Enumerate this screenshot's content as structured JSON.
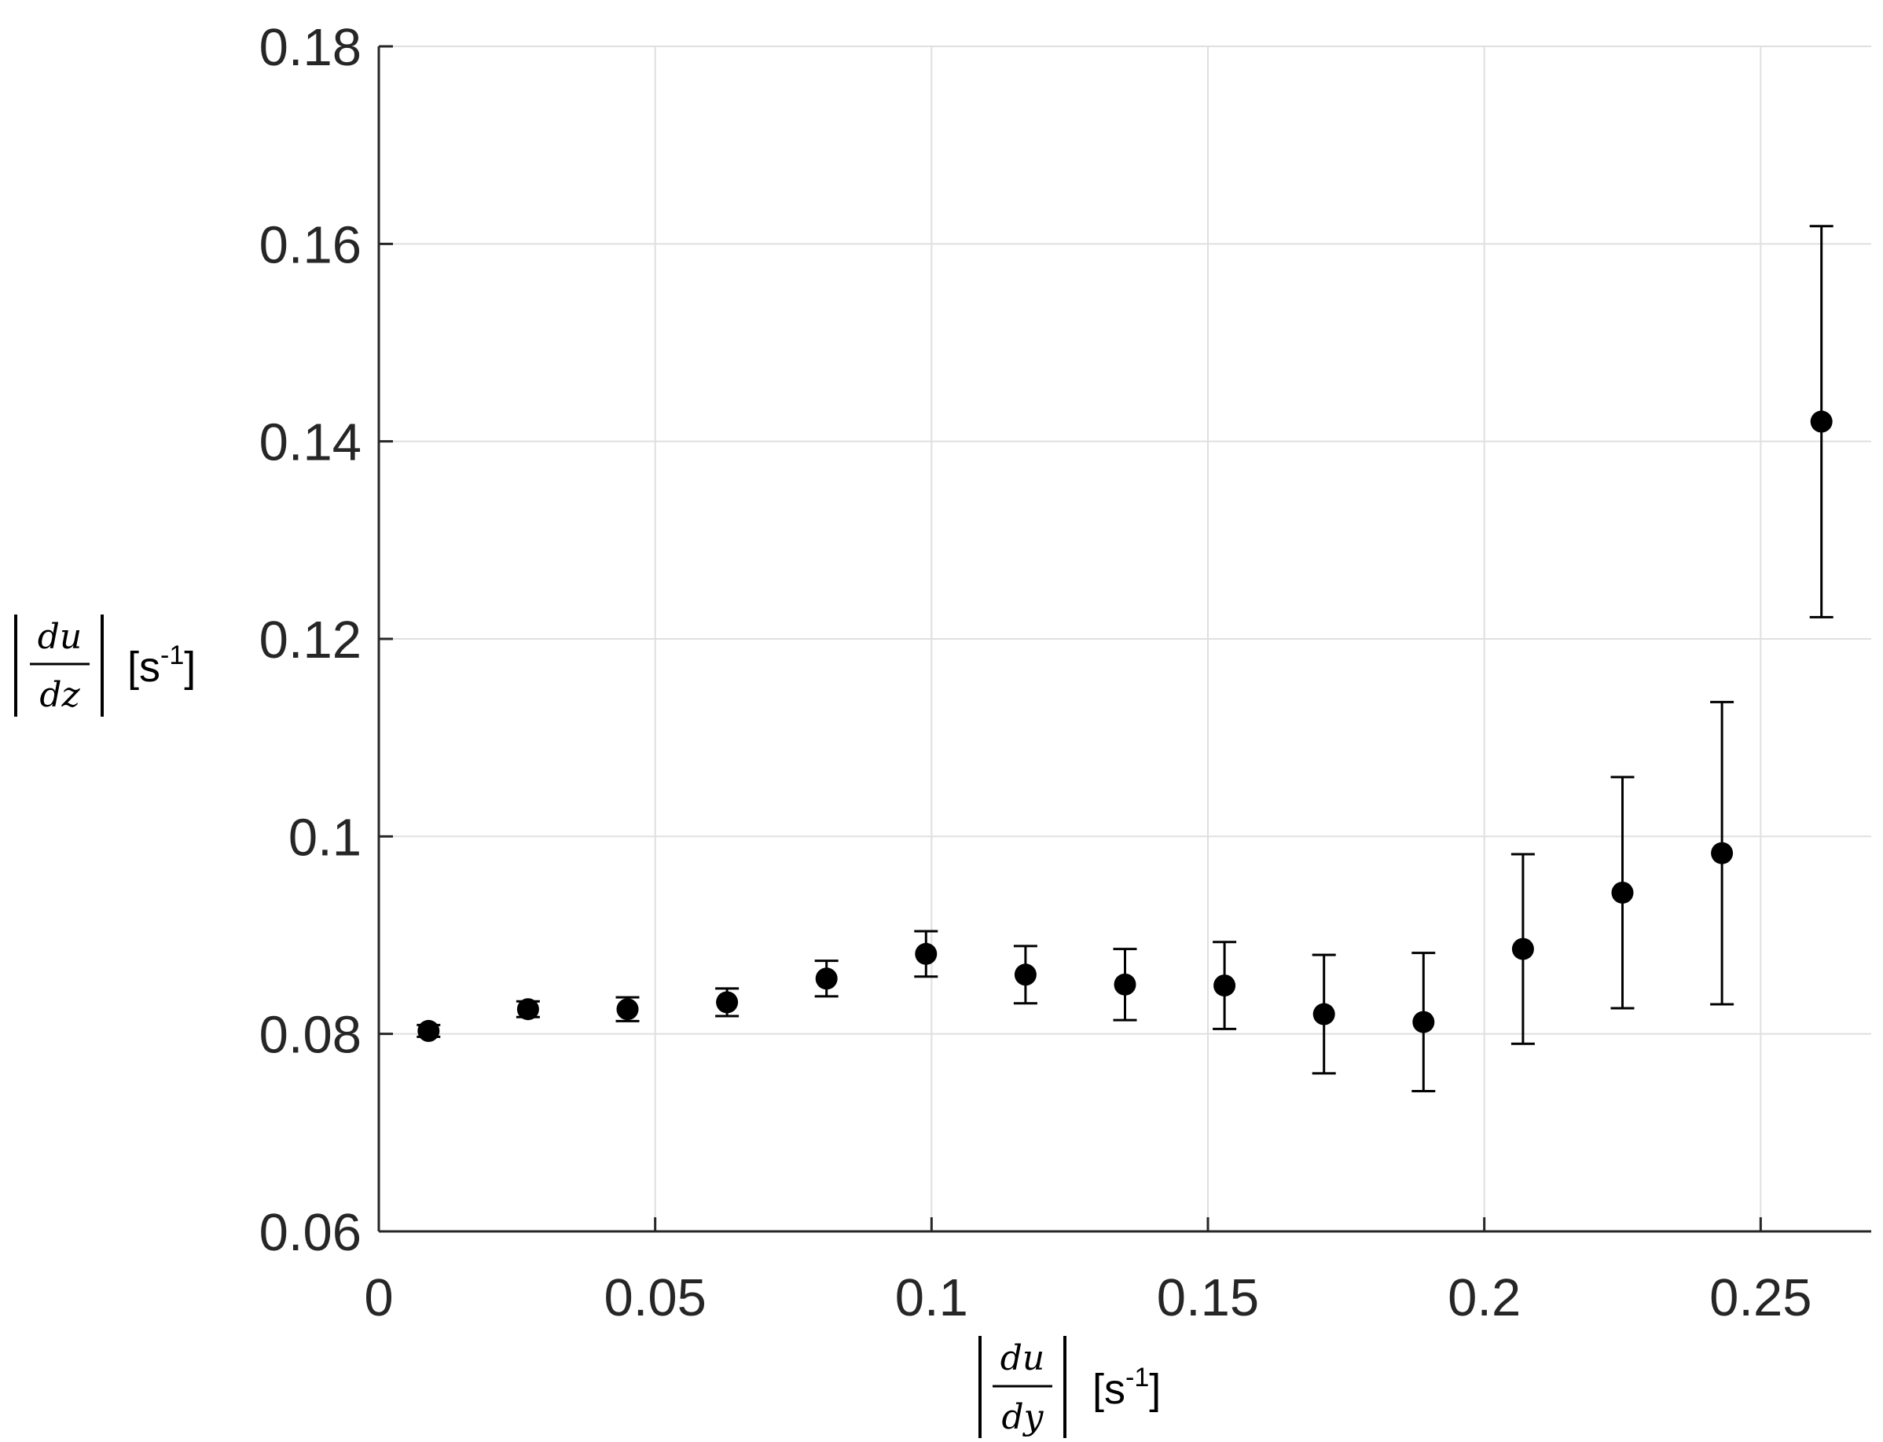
{
  "chart_data": {
    "type": "scatter",
    "error_bars": true,
    "grid": true,
    "xlim": [
      0,
      0.27
    ],
    "ylim": [
      0.06,
      0.18
    ],
    "x_ticks": [
      {
        "value": 0,
        "label": "0"
      },
      {
        "value": 0.05,
        "label": "0.05"
      },
      {
        "value": 0.1,
        "label": "0.1"
      },
      {
        "value": 0.15,
        "label": "0.15"
      },
      {
        "value": 0.2,
        "label": "0.2"
      },
      {
        "value": 0.25,
        "label": "0.25"
      }
    ],
    "y_ticks": [
      {
        "value": 0.06,
        "label": "0.06"
      },
      {
        "value": 0.08,
        "label": "0.08"
      },
      {
        "value": 0.1,
        "label": "0.1"
      },
      {
        "value": 0.12,
        "label": "0.12"
      },
      {
        "value": 0.14,
        "label": "0.14"
      },
      {
        "value": 0.16,
        "label": "0.16"
      },
      {
        "value": 0.18,
        "label": "0.18"
      }
    ],
    "xlabel": {
      "numerator": "du",
      "denominator": "dy",
      "unit": "[s",
      "unit_exp": "-1",
      "unit_close": "]"
    },
    "ylabel": {
      "numerator": "du",
      "denominator": "dz",
      "unit": "[s",
      "unit_exp": "-1",
      "unit_close": "]"
    },
    "points": [
      {
        "x": 0.009,
        "y": 0.0803,
        "ylow": 0.0797,
        "yhigh": 0.0809
      },
      {
        "x": 0.027,
        "y": 0.0825,
        "ylow": 0.0817,
        "yhigh": 0.0833
      },
      {
        "x": 0.045,
        "y": 0.0825,
        "ylow": 0.0813,
        "yhigh": 0.0837
      },
      {
        "x": 0.063,
        "y": 0.0832,
        "ylow": 0.0818,
        "yhigh": 0.0846
      },
      {
        "x": 0.081,
        "y": 0.0856,
        "ylow": 0.0838,
        "yhigh": 0.0874
      },
      {
        "x": 0.099,
        "y": 0.0881,
        "ylow": 0.0858,
        "yhigh": 0.0904
      },
      {
        "x": 0.117,
        "y": 0.086,
        "ylow": 0.0831,
        "yhigh": 0.0889
      },
      {
        "x": 0.135,
        "y": 0.085,
        "ylow": 0.0814,
        "yhigh": 0.0886
      },
      {
        "x": 0.153,
        "y": 0.0849,
        "ylow": 0.0805,
        "yhigh": 0.0893
      },
      {
        "x": 0.171,
        "y": 0.082,
        "ylow": 0.076,
        "yhigh": 0.088
      },
      {
        "x": 0.189,
        "y": 0.0812,
        "ylow": 0.0742,
        "yhigh": 0.0882
      },
      {
        "x": 0.207,
        "y": 0.0886,
        "ylow": 0.079,
        "yhigh": 0.0982
      },
      {
        "x": 0.225,
        "y": 0.0943,
        "ylow": 0.0826,
        "yhigh": 0.106
      },
      {
        "x": 0.243,
        "y": 0.0983,
        "ylow": 0.083,
        "yhigh": 0.1136
      },
      {
        "x": 0.261,
        "y": 0.142,
        "ylow": 0.1222,
        "yhigh": 0.1618
      }
    ]
  },
  "colors": {
    "background": "#ffffff",
    "axis": "#262626",
    "grid": "#dfdfdf",
    "marker": "#000000"
  }
}
